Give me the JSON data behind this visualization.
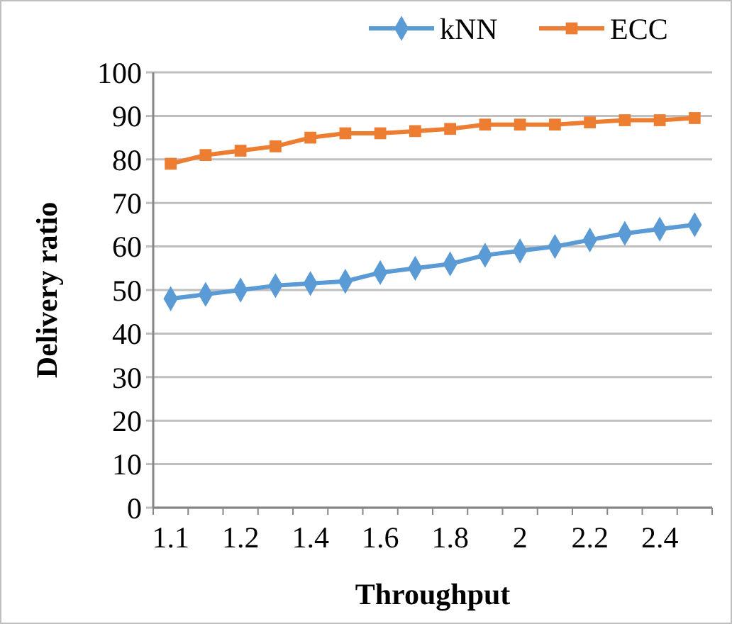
{
  "chart_data": {
    "type": "line",
    "xlabel": "Throughput",
    "ylabel": "Delivery ratio",
    "categories": [
      "1.1",
      null,
      "1.2",
      null,
      "1.4",
      null,
      "1.6",
      null,
      "1.8",
      null,
      "2",
      null,
      "2.2",
      null,
      "2.4",
      null
    ],
    "series": [
      {
        "name": "kNN",
        "color": "#5b9bd5",
        "marker": "diamond",
        "values": [
          48,
          49,
          50,
          51,
          51.5,
          52,
          54,
          55,
          56,
          58,
          59,
          60,
          61.5,
          63,
          64,
          65
        ]
      },
      {
        "name": "ECC",
        "color": "#ed7d31",
        "marker": "square",
        "values": [
          79,
          81,
          82,
          83,
          85,
          86,
          86,
          86.5,
          87,
          88,
          88,
          88,
          88.5,
          89,
          89,
          89.5
        ]
      }
    ],
    "ylim": [
      0,
      100
    ],
    "yticks": [
      0,
      10,
      20,
      30,
      40,
      50,
      60,
      70,
      80,
      90,
      100
    ],
    "grid": "y",
    "legend": "top"
  }
}
